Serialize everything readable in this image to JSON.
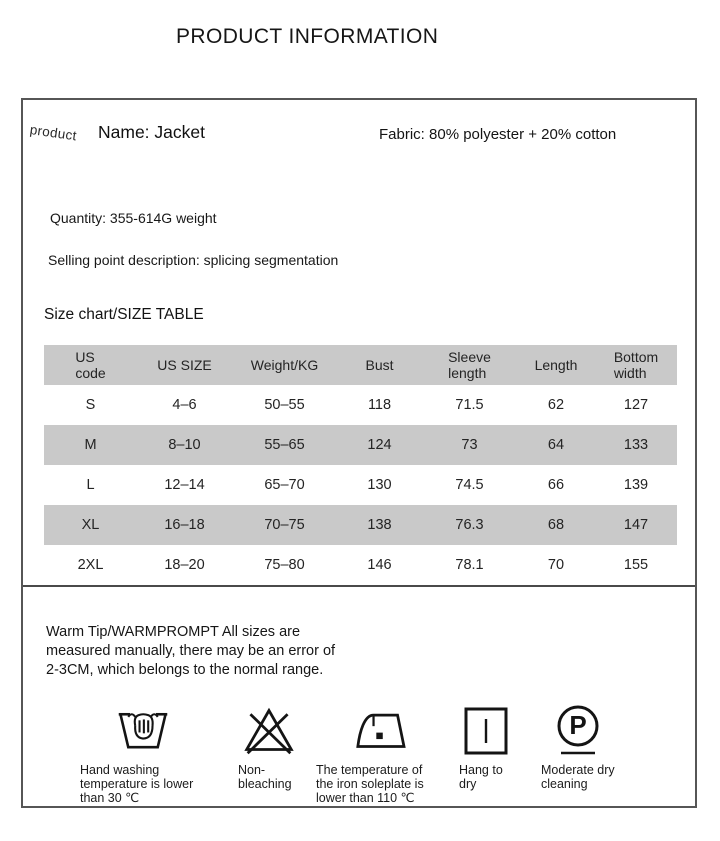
{
  "page_title": "PRODUCT INFORMATION",
  "card": {
    "corner_label": "product",
    "name": "Name: Jacket",
    "fabric": "Fabric: 80% polyester + 20% cotton",
    "quantity": "Quantity: 355-614G weight",
    "selling_point": "Selling point description: splicing segmentation",
    "size_chart_title": "Size chart/SIZE TABLE"
  },
  "size_table": {
    "columns": [
      "US\ncode",
      "US SIZE",
      "Weight/KG",
      "Bust",
      "Sleeve\nlength",
      "Length",
      "Bottom\nwidth"
    ],
    "rows": [
      [
        "S",
        "4–6",
        "50–55",
        "118",
        "71.5",
        "62",
        "127"
      ],
      [
        "M",
        "8–10",
        "55–65",
        "124",
        "73",
        "64",
        "133"
      ],
      [
        "L",
        "12–14",
        "65–70",
        "130",
        "74.5",
        "66",
        "139"
      ],
      [
        "XL",
        "16–18",
        "70–75",
        "138",
        "76.3",
        "68",
        "147"
      ],
      [
        "2XL",
        "18–20",
        "75–80",
        "146",
        "78.1",
        "70",
        "155"
      ]
    ],
    "stripe_color": "#c9c9c9"
  },
  "warm_tip": {
    "text": "Warm Tip/WARMPROMPT All sizes are\nmeasured manually, there may be an error of\n2-3CM, which belongs to the normal range."
  },
  "care": {
    "items": [
      {
        "icon": "hand-wash-icon",
        "label": "Hand washing\ntemperature is lower\nthan 30 ℃"
      },
      {
        "icon": "non-bleach-icon",
        "label": "Non-\nbleaching"
      },
      {
        "icon": "iron-low-temp-icon",
        "label": "The temperature of\nthe iron soleplate is\nlower than 110 ℃"
      },
      {
        "icon": "hang-dry-icon",
        "label": "Hang to\ndry"
      },
      {
        "icon": "dry-clean-p-icon",
        "label": "Moderate dry\ncleaning"
      }
    ]
  },
  "colors": {
    "table_stripe": "#c9c9c9",
    "card_border": "#565656",
    "text": "#1f1f1f"
  }
}
